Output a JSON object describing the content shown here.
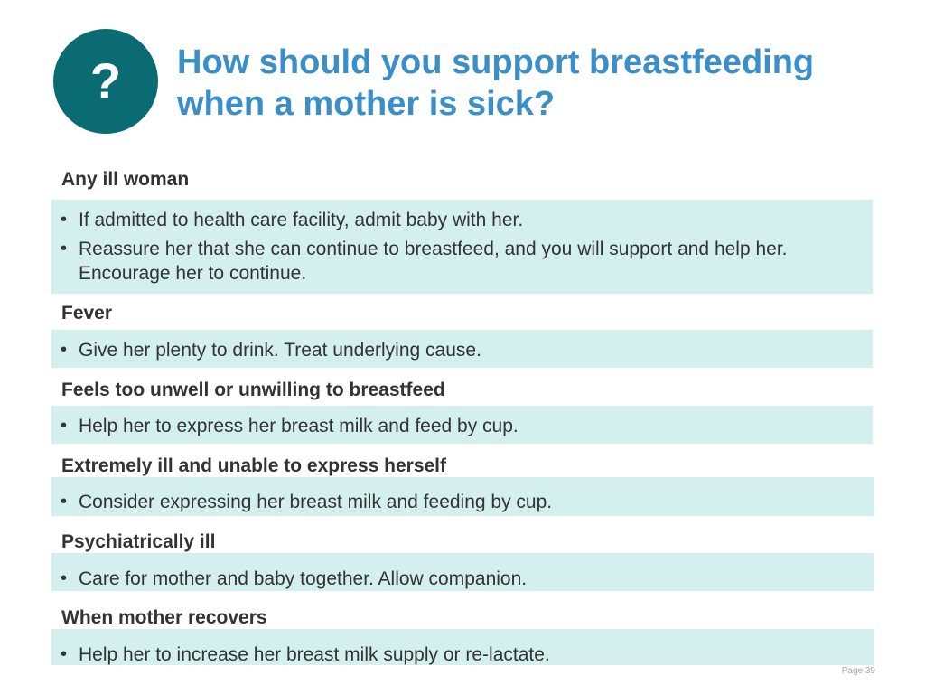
{
  "badge": {
    "symbol": "?",
    "color": "#0b6b72"
  },
  "title": "How should you support breastfeeding when a mother is sick?",
  "colors": {
    "title": "#3a8fc9",
    "band": "#d3f0ee",
    "text": "#333333"
  },
  "sections": [
    {
      "heading": "Any ill woman",
      "bullets": [
        "If admitted to health care facility, admit baby with her.",
        "Reassure her that she can continue to breastfeed, and you will support and help her. Encourage her to continue."
      ]
    },
    {
      "heading": "Fever",
      "bullets": [
        "Give her plenty to drink. Treat underlying cause."
      ]
    },
    {
      "heading": "Feels too unwell or unwilling to breastfeed",
      "bullets": [
        "Help her to express her breast milk and feed by cup."
      ]
    },
    {
      "heading": "Extremely ill and unable to express herself",
      "bullets": [
        "Consider expressing her breast milk and feeding by cup."
      ]
    },
    {
      "heading": "Psychiatrically ill",
      "bullets": [
        "Care for mother and baby together. Allow companion."
      ]
    },
    {
      "heading": "When mother recovers",
      "bullets": [
        "Help her to increase her breast milk supply or re-lactate."
      ]
    }
  ],
  "footer": {
    "page": "Page 39"
  }
}
